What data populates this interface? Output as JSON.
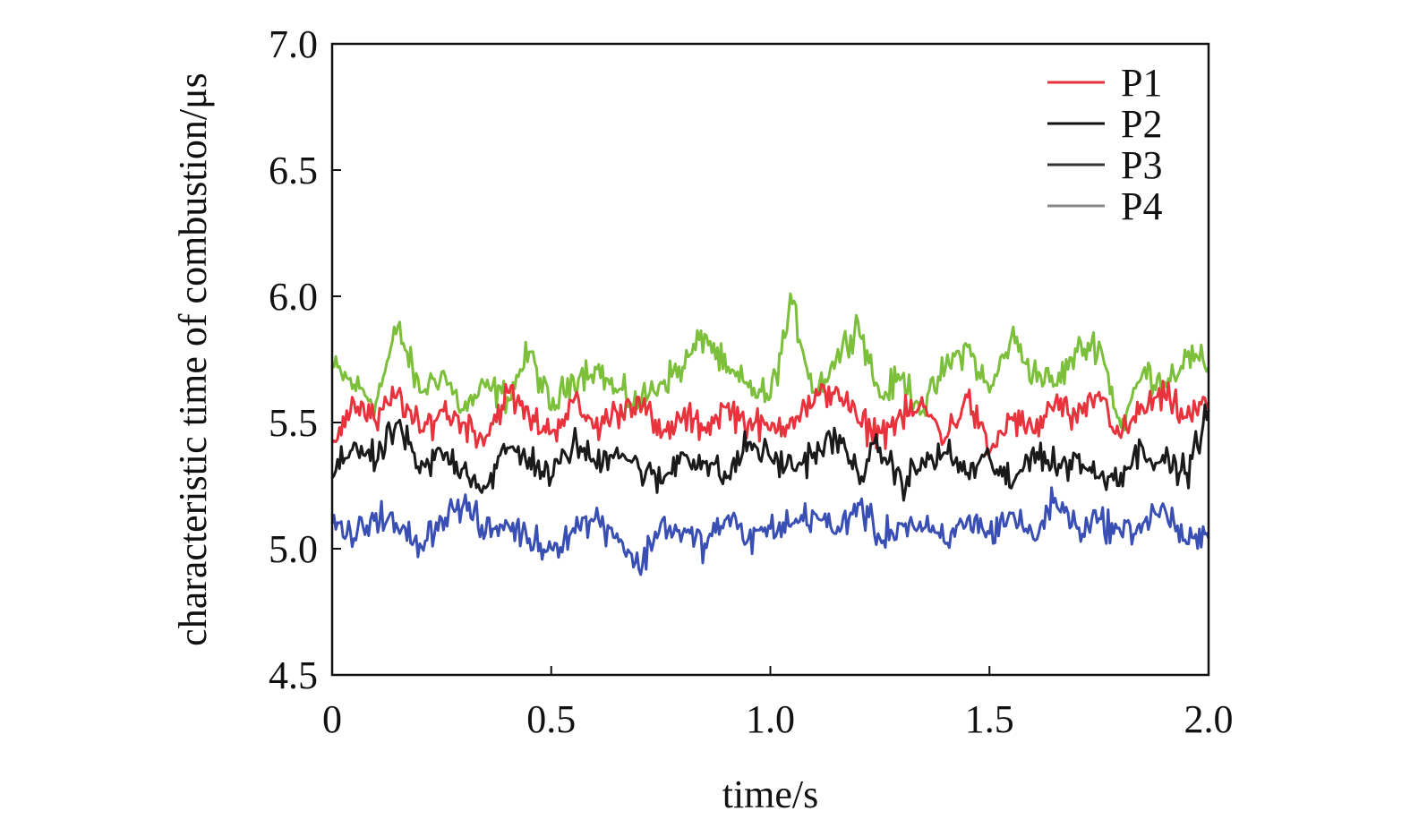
{
  "chart_data": {
    "type": "line",
    "title": "",
    "xlabel": "time/s",
    "ylabel": "characteristic time of combustion/μs",
    "xlim": [
      0,
      2.0
    ],
    "ylim": [
      4.5,
      7.0
    ],
    "x_ticks": [
      0,
      0.5,
      1.0,
      1.5,
      2.0
    ],
    "x_tick_labels": [
      "0",
      "0.5",
      "1.0",
      "1.5",
      "2.0"
    ],
    "y_ticks": [
      4.5,
      5.0,
      5.5,
      6.0,
      6.5,
      7.0
    ],
    "y_tick_labels": [
      "4.5",
      "5.0",
      "5.5",
      "6.0",
      "6.5",
      "7.0"
    ],
    "grid": false,
    "legend_position": "top-right",
    "legend": [
      {
        "label": "P1",
        "swatch": "#e8323c"
      },
      {
        "label": "P2",
        "swatch": "#111111"
      },
      {
        "label": "P3",
        "swatch": "#333333"
      },
      {
        "label": "P4",
        "swatch": "#888888"
      }
    ],
    "series": [
      {
        "color": "#7cbf3a",
        "x": [
          0,
          0.05,
          0.1,
          0.15,
          0.2,
          0.25,
          0.3,
          0.35,
          0.4,
          0.45,
          0.5,
          0.55,
          0.6,
          0.65,
          0.7,
          0.75,
          0.8,
          0.85,
          0.9,
          0.95,
          1.0,
          1.05,
          1.1,
          1.15,
          1.2,
          1.25,
          1.3,
          1.35,
          1.4,
          1.45,
          1.5,
          1.55,
          1.6,
          1.65,
          1.7,
          1.75,
          1.8,
          1.85,
          1.9,
          1.95,
          2.0
        ],
        "y": [
          5.72,
          5.65,
          5.58,
          5.88,
          5.62,
          5.7,
          5.55,
          5.64,
          5.6,
          5.78,
          5.55,
          5.68,
          5.72,
          5.62,
          5.58,
          5.66,
          5.72,
          5.85,
          5.7,
          5.64,
          5.6,
          5.97,
          5.62,
          5.75,
          5.9,
          5.6,
          5.68,
          5.55,
          5.72,
          5.8,
          5.62,
          5.84,
          5.7,
          5.65,
          5.78,
          5.82,
          5.48,
          5.7,
          5.66,
          5.76,
          5.72
        ]
      },
      {
        "color": "#e8323c",
        "x": [
          0,
          0.05,
          0.1,
          0.15,
          0.2,
          0.25,
          0.3,
          0.35,
          0.4,
          0.45,
          0.5,
          0.55,
          0.6,
          0.65,
          0.7,
          0.75,
          0.8,
          0.85,
          0.9,
          0.95,
          1.0,
          1.05,
          1.1,
          1.15,
          1.2,
          1.25,
          1.3,
          1.35,
          1.4,
          1.45,
          1.5,
          1.55,
          1.6,
          1.65,
          1.7,
          1.75,
          1.8,
          1.85,
          1.9,
          1.95,
          2.0
        ],
        "y": [
          5.42,
          5.58,
          5.5,
          5.62,
          5.46,
          5.55,
          5.5,
          5.44,
          5.62,
          5.52,
          5.46,
          5.58,
          5.48,
          5.54,
          5.6,
          5.44,
          5.52,
          5.48,
          5.56,
          5.5,
          5.47,
          5.52,
          5.58,
          5.64,
          5.5,
          5.46,
          5.52,
          5.56,
          5.44,
          5.6,
          5.38,
          5.52,
          5.46,
          5.58,
          5.5,
          5.62,
          5.44,
          5.56,
          5.6,
          5.52,
          5.58
        ]
      },
      {
        "color": "#1a1a1a",
        "x": [
          0,
          0.05,
          0.1,
          0.15,
          0.2,
          0.25,
          0.3,
          0.35,
          0.4,
          0.45,
          0.5,
          0.55,
          0.6,
          0.65,
          0.7,
          0.75,
          0.8,
          0.85,
          0.9,
          0.95,
          1.0,
          1.05,
          1.1,
          1.15,
          1.2,
          1.25,
          1.3,
          1.35,
          1.4,
          1.45,
          1.5,
          1.55,
          1.6,
          1.65,
          1.7,
          1.75,
          1.8,
          1.85,
          1.9,
          1.95,
          2.0
        ],
        "y": [
          5.28,
          5.42,
          5.34,
          5.5,
          5.3,
          5.38,
          5.32,
          5.24,
          5.4,
          5.36,
          5.28,
          5.42,
          5.34,
          5.4,
          5.32,
          5.26,
          5.38,
          5.34,
          5.28,
          5.42,
          5.36,
          5.32,
          5.38,
          5.44,
          5.3,
          5.4,
          5.26,
          5.34,
          5.38,
          5.3,
          5.36,
          5.24,
          5.4,
          5.32,
          5.36,
          5.28,
          5.3,
          5.4,
          5.34,
          5.3,
          5.55
        ]
      },
      {
        "color": "#3a4fb4",
        "x": [
          0,
          0.05,
          0.1,
          0.15,
          0.2,
          0.25,
          0.3,
          0.35,
          0.4,
          0.45,
          0.5,
          0.55,
          0.6,
          0.65,
          0.7,
          0.75,
          0.8,
          0.85,
          0.9,
          0.95,
          1.0,
          1.05,
          1.1,
          1.15,
          1.2,
          1.25,
          1.3,
          1.35,
          1.4,
          1.45,
          1.5,
          1.55,
          1.6,
          1.65,
          1.7,
          1.75,
          1.8,
          1.85,
          1.9,
          1.95,
          2.0
        ],
        "y": [
          5.1,
          5.04,
          5.14,
          5.08,
          5.02,
          5.12,
          5.18,
          5.06,
          5.1,
          5.04,
          5.0,
          5.08,
          5.12,
          5.06,
          4.92,
          5.1,
          5.06,
          5.02,
          5.12,
          5.04,
          5.08,
          5.1,
          5.14,
          5.06,
          5.18,
          5.04,
          5.1,
          5.08,
          5.02,
          5.12,
          5.06,
          5.14,
          5.04,
          5.2,
          5.08,
          5.12,
          5.06,
          5.1,
          5.16,
          5.02,
          5.04
        ]
      }
    ]
  }
}
